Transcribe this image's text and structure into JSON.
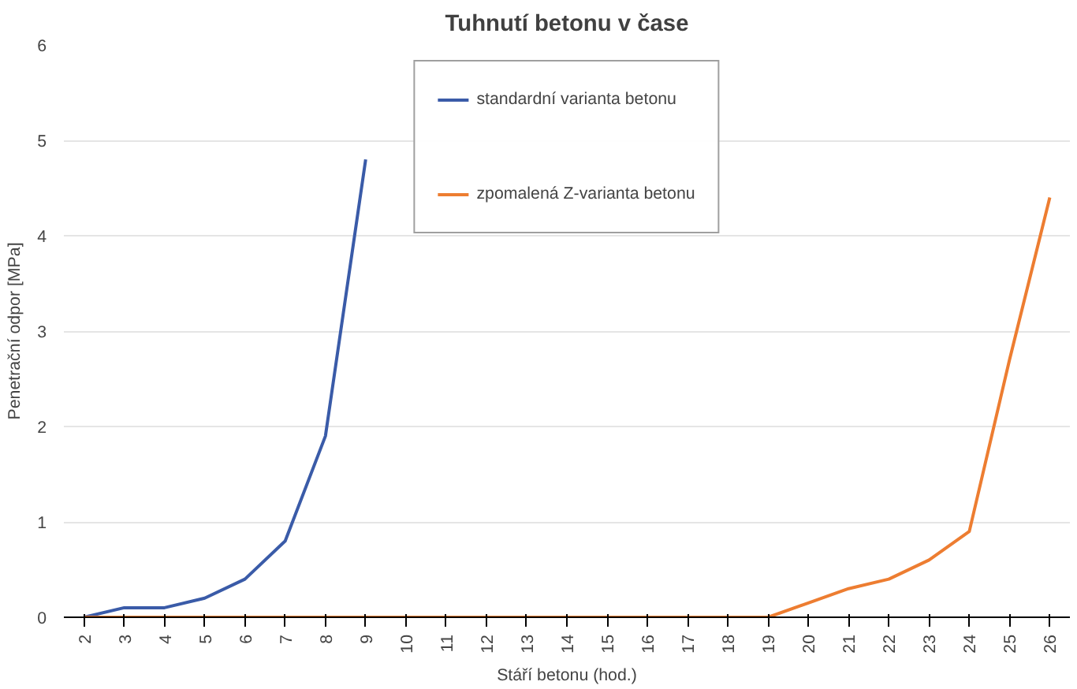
{
  "chart_data": {
    "type": "line",
    "title": "Tuhnutí betonu v čase",
    "xlabel": "Stáří betonu (hod.)",
    "ylabel": "Penetrační odpor [MPa]",
    "categories": [
      "2",
      "3",
      "4",
      "5",
      "6",
      "7",
      "8",
      "9",
      "10",
      "11",
      "12",
      "13",
      "14",
      "15",
      "16",
      "17",
      "18",
      "19",
      "20",
      "21",
      "22",
      "23",
      "24",
      "25",
      "26"
    ],
    "series": [
      {
        "name": "standardní varianta betonu",
        "color": "#3a5ba8",
        "values": [
          0,
          0.1,
          0.1,
          0.2,
          0.4,
          0.8,
          1.9,
          4.8,
          null,
          null,
          null,
          null,
          null,
          null,
          null,
          null,
          null,
          null,
          null,
          null,
          null,
          null,
          null,
          null,
          null
        ]
      },
      {
        "name": "zpomalená Z-varianta betonu",
        "color": "#ed7d31",
        "values": [
          0,
          0,
          0,
          0,
          0,
          0,
          0,
          0,
          0,
          0,
          0,
          0,
          0,
          0,
          0,
          0,
          0,
          0,
          0.15,
          0.3,
          0.4,
          0.6,
          0.9,
          2.7,
          4.4
        ]
      }
    ],
    "ylim": [
      0,
      6
    ],
    "yticks": [
      0,
      1,
      2,
      3,
      4,
      5,
      6
    ],
    "grid": "y",
    "legend": "top",
    "marker": "none",
    "line_style": "solid"
  }
}
